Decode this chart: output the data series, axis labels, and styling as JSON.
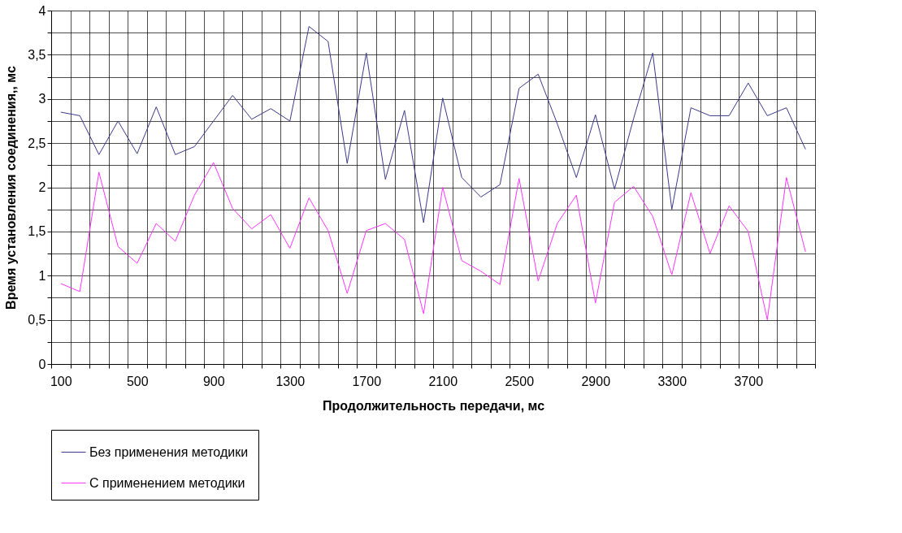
{
  "chart_data": {
    "type": "line",
    "xlabel": "Продолжительность  передачи, мс",
    "ylabel": "Время установления  соединения,, мс",
    "categories": [
      "100",
      null,
      null,
      null,
      "500",
      null,
      null,
      null,
      "900",
      null,
      null,
      null,
      "1300",
      null,
      null,
      null,
      "1700",
      null,
      null,
      null,
      "2100",
      null,
      null,
      null,
      "2500",
      null,
      null,
      null,
      "2900",
      null,
      null,
      null,
      "3300",
      null,
      null,
      null,
      "3700",
      null,
      null,
      null
    ],
    "series": [
      {
        "name": "Без применения методики",
        "color": "#3a3a8c",
        "values": [
          2.85,
          2.81,
          2.37,
          2.75,
          2.38,
          2.91,
          2.37,
          2.46,
          2.75,
          3.04,
          2.77,
          2.89,
          2.75,
          3.82,
          3.65,
          2.27,
          3.52,
          2.09,
          2.87,
          1.6,
          3.01,
          2.11,
          1.89,
          2.03,
          3.12,
          3.28,
          2.72,
          2.11,
          2.82,
          1.98,
          2.78,
          3.52,
          1.75,
          2.9,
          2.81,
          2.81,
          3.18,
          2.81,
          2.9,
          2.43
        ]
      },
      {
        "name": "С применением методики",
        "color": "#ff33ff",
        "values": [
          0.91,
          0.82,
          2.17,
          1.33,
          1.14,
          1.59,
          1.39,
          1.91,
          2.28,
          1.76,
          1.53,
          1.69,
          1.31,
          1.88,
          1.51,
          0.8,
          1.51,
          1.59,
          1.41,
          0.57,
          2.0,
          1.17,
          1.05,
          0.9,
          2.1,
          0.94,
          1.59,
          1.91,
          0.69,
          1.83,
          2.01,
          1.67,
          1.01,
          1.94,
          1.25,
          1.79,
          1.5,
          0.5,
          2.11,
          1.27
        ]
      }
    ],
    "ylim": [
      0,
      4
    ],
    "yticks": [
      0,
      {
        "value": 0.25,
        "label": null
      },
      {
        "value": 0.5,
        "label": "0,5"
      },
      {
        "value": 0.75,
        "label": null
      },
      1,
      {
        "value": 1.25,
        "label": null
      },
      {
        "value": 1.5,
        "label": "1,5"
      },
      {
        "value": 1.75,
        "label": null
      },
      2,
      {
        "value": 2.25,
        "label": null
      },
      {
        "value": 2.5,
        "label": "2,5"
      },
      {
        "value": 2.75,
        "label": null
      },
      3,
      {
        "value": 3.25,
        "label": null
      },
      {
        "value": 3.5,
        "label": "3,5"
      },
      {
        "value": 3.75,
        "label": null
      },
      4
    ],
    "grid": true,
    "legend": "bottom",
    "marker": "none",
    "line_style": "solid"
  }
}
